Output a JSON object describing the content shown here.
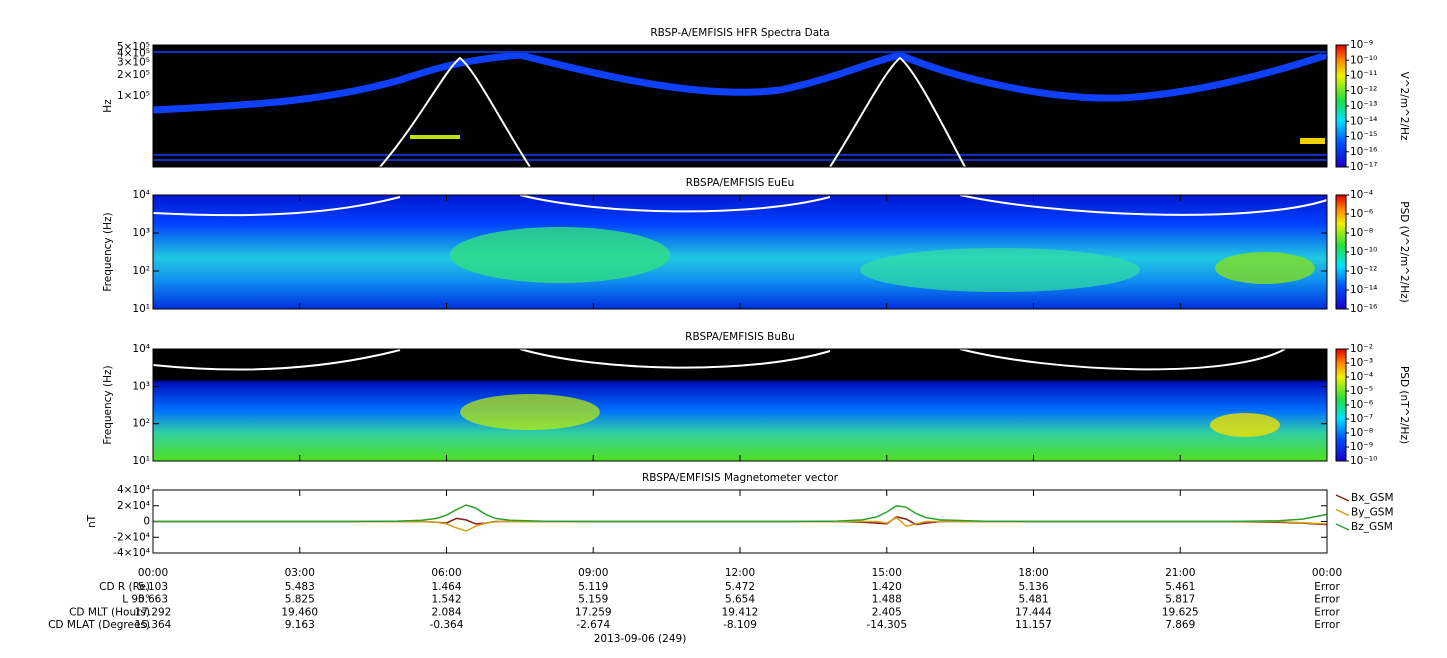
{
  "chart_data": [
    {
      "type": "spectrogram",
      "title": "RBSP-A/EMFISIS  HFR Spectra Data",
      "y_label": "Hz",
      "log_scale": true,
      "ylim": [
        10000,
        530000
      ],
      "yticks": [
        {
          "value": 100000,
          "label": "1×10⁵"
        },
        {
          "value": 200000,
          "label": "2×10⁵"
        },
        {
          "value": 300000,
          "label": "3×10⁵"
        },
        {
          "value": 400000,
          "label": "4×10⁵"
        },
        {
          "value": 500000,
          "label": "5×10⁵"
        }
      ],
      "colorbar_label": "V^2/m^2/Hz",
      "clim": [
        1e-17,
        1e-09
      ],
      "cticks": [
        {
          "value": 1e-09,
          "label": "10⁻⁹"
        },
        {
          "value": 1e-10,
          "label": "10⁻¹⁰"
        },
        {
          "value": 1e-11,
          "label": "10⁻¹¹"
        },
        {
          "value": 1e-12,
          "label": "10⁻¹²"
        },
        {
          "value": 1e-13,
          "label": "10⁻¹³"
        },
        {
          "value": 1e-14,
          "label": "10⁻¹⁴"
        },
        {
          "value": 1e-15,
          "label": "10⁻¹⁵"
        },
        {
          "value": 1e-16,
          "label": "10⁻¹⁶"
        },
        {
          "value": 1e-17,
          "label": "10⁻¹⁷"
        }
      ]
    },
    {
      "type": "spectrogram",
      "title": "RBSPA/EMFISIS  EuEu",
      "y_label": "Frequency (Hz)",
      "log_scale": true,
      "ylim": [
        10,
        10000
      ],
      "yticks": [
        {
          "value": 10,
          "label": "10¹"
        },
        {
          "value": 100,
          "label": "10²"
        },
        {
          "value": 1000,
          "label": "10³"
        },
        {
          "value": 10000,
          "label": "10⁴"
        }
      ],
      "colorbar_label": "PSD (V^2/m^2/Hz)",
      "clim": [
        1e-16,
        0.0001
      ],
      "cticks": [
        {
          "value": 0.0001,
          "label": "10⁻⁴"
        },
        {
          "value": 1e-06,
          "label": "10⁻⁶"
        },
        {
          "value": 1e-08,
          "label": "10⁻⁸"
        },
        {
          "value": 1e-10,
          "label": "10⁻¹⁰"
        },
        {
          "value": 1e-12,
          "label": "10⁻¹²"
        },
        {
          "value": 1e-14,
          "label": "10⁻¹⁴"
        },
        {
          "value": 1e-16,
          "label": "10⁻¹⁶"
        }
      ]
    },
    {
      "type": "spectrogram",
      "title": "RBSPA/EMFISIS  BuBu",
      "y_label": "Frequency (Hz)",
      "log_scale": true,
      "ylim": [
        10,
        10000
      ],
      "yticks": [
        {
          "value": 10,
          "label": "10¹"
        },
        {
          "value": 100,
          "label": "10²"
        },
        {
          "value": 1000,
          "label": "10³"
        },
        {
          "value": 10000,
          "label": "10⁴"
        }
      ],
      "colorbar_label": "PSD (nT^2/Hz)",
      "clim": [
        1e-10,
        0.01
      ],
      "cticks": [
        {
          "value": 0.01,
          "label": "10⁻²"
        },
        {
          "value": 0.001,
          "label": "10⁻³"
        },
        {
          "value": 0.0001,
          "label": "10⁻⁴"
        },
        {
          "value": 1e-05,
          "label": "10⁻⁵"
        },
        {
          "value": 1e-06,
          "label": "10⁻⁶"
        },
        {
          "value": 1e-07,
          "label": "10⁻⁷"
        },
        {
          "value": 1e-08,
          "label": "10⁻⁸"
        },
        {
          "value": 1e-09,
          "label": "10⁻⁹"
        },
        {
          "value": 1e-10,
          "label": "10⁻¹⁰"
        }
      ]
    },
    {
      "type": "line",
      "title": "RBSPA/EMFISIS  Magnetometer vector",
      "y_label": "nT",
      "ylim": [
        -40000,
        40000
      ],
      "yticks": [
        {
          "value": -40000,
          "label": "-4×10⁴"
        },
        {
          "value": -20000,
          "label": "-2×10⁴"
        },
        0,
        {
          "value": 20000,
          "label": "2×10⁴"
        },
        {
          "value": 40000,
          "label": "4×10⁴"
        }
      ],
      "xlim": [
        0,
        24
      ],
      "xticks": [
        {
          "value": 0,
          "label": "00:00"
        },
        {
          "value": 3,
          "label": "03:00"
        },
        {
          "value": 6,
          "label": "06:00"
        },
        {
          "value": 9,
          "label": "09:00"
        },
        {
          "value": 12,
          "label": "12:00"
        },
        {
          "value": 15,
          "label": "15:00"
        },
        {
          "value": 18,
          "label": "18:00"
        },
        {
          "value": 21,
          "label": "21:00"
        },
        {
          "value": 24,
          "label": "00:00"
        }
      ],
      "x_label": "2013-09-06 (249)",
      "x": [
        0,
        1,
        2,
        3,
        4,
        5,
        5.5,
        5.8,
        6.0,
        6.2,
        6.4,
        6.6,
        6.8,
        7.0,
        7.3,
        8,
        9,
        10,
        11,
        12,
        13,
        14,
        14.5,
        14.8,
        15.0,
        15.2,
        15.4,
        15.6,
        15.8,
        16.1,
        17,
        18,
        19,
        20,
        21,
        22,
        23,
        23.5,
        24
      ],
      "series": [
        {
          "name": "Bx_GSM",
          "color": "#8b1a1a",
          "values": [
            0,
            0,
            0,
            0,
            0,
            0,
            0,
            -1000,
            -2000,
            4000,
            2000,
            -3000,
            -2000,
            0,
            0,
            0,
            0,
            0,
            0,
            0,
            0,
            0,
            -1000,
            -2000,
            -3000,
            6000,
            3000,
            -4000,
            -2000,
            0,
            0,
            0,
            0,
            0,
            0,
            0,
            -1000,
            -2000,
            -4000
          ]
        },
        {
          "name": "By_GSM",
          "color": "#d4a017",
          "values": [
            0,
            0,
            0,
            0,
            0,
            0,
            0,
            -1000,
            -3000,
            -8000,
            -12000,
            -6000,
            -2000,
            -500,
            0,
            0,
            0,
            0,
            0,
            0,
            0,
            0,
            0,
            0,
            -2000,
            5000,
            -6000,
            -3000,
            0,
            0,
            0,
            0,
            0,
            0,
            0,
            0,
            0,
            -1500,
            -3000
          ]
        },
        {
          "name": "Bz_GSM",
          "color": "#2ca02c",
          "values": [
            0,
            0,
            0,
            0,
            0,
            500,
            1500,
            4000,
            8000,
            15000,
            21000,
            17000,
            9000,
            4000,
            1500,
            200,
            0,
            0,
            0,
            0,
            0,
            500,
            2000,
            6000,
            12000,
            20000,
            18000,
            10000,
            5000,
            2000,
            300,
            0,
            0,
            0,
            0,
            0,
            1000,
            3000,
            9000
          ]
        }
      ]
    }
  ],
  "ephemeris": {
    "rows": [
      {
        "label": "CD R (Re)",
        "values": [
          "5.103",
          "5.483",
          "1.464",
          "5.119",
          "5.472",
          "1.420",
          "5.136",
          "5.461",
          "Error"
        ]
      },
      {
        "label": "L 90°",
        "values": [
          "5.663",
          "5.825",
          "1.542",
          "5.159",
          "5.654",
          "1.488",
          "5.481",
          "5.817",
          "Error"
        ]
      },
      {
        "label": "CD MLT (Hours)",
        "values": [
          "17.292",
          "19.460",
          "2.084",
          "17.259",
          "19.412",
          "2.405",
          "17.444",
          "19.625",
          "Error"
        ]
      },
      {
        "label": "CD MLAT (Degrees)",
        "values": [
          "15.364",
          "9.163",
          "-0.364",
          "-2.674",
          "-8.109",
          "-14.305",
          "11.157",
          "7.869",
          "Error"
        ]
      }
    ]
  }
}
